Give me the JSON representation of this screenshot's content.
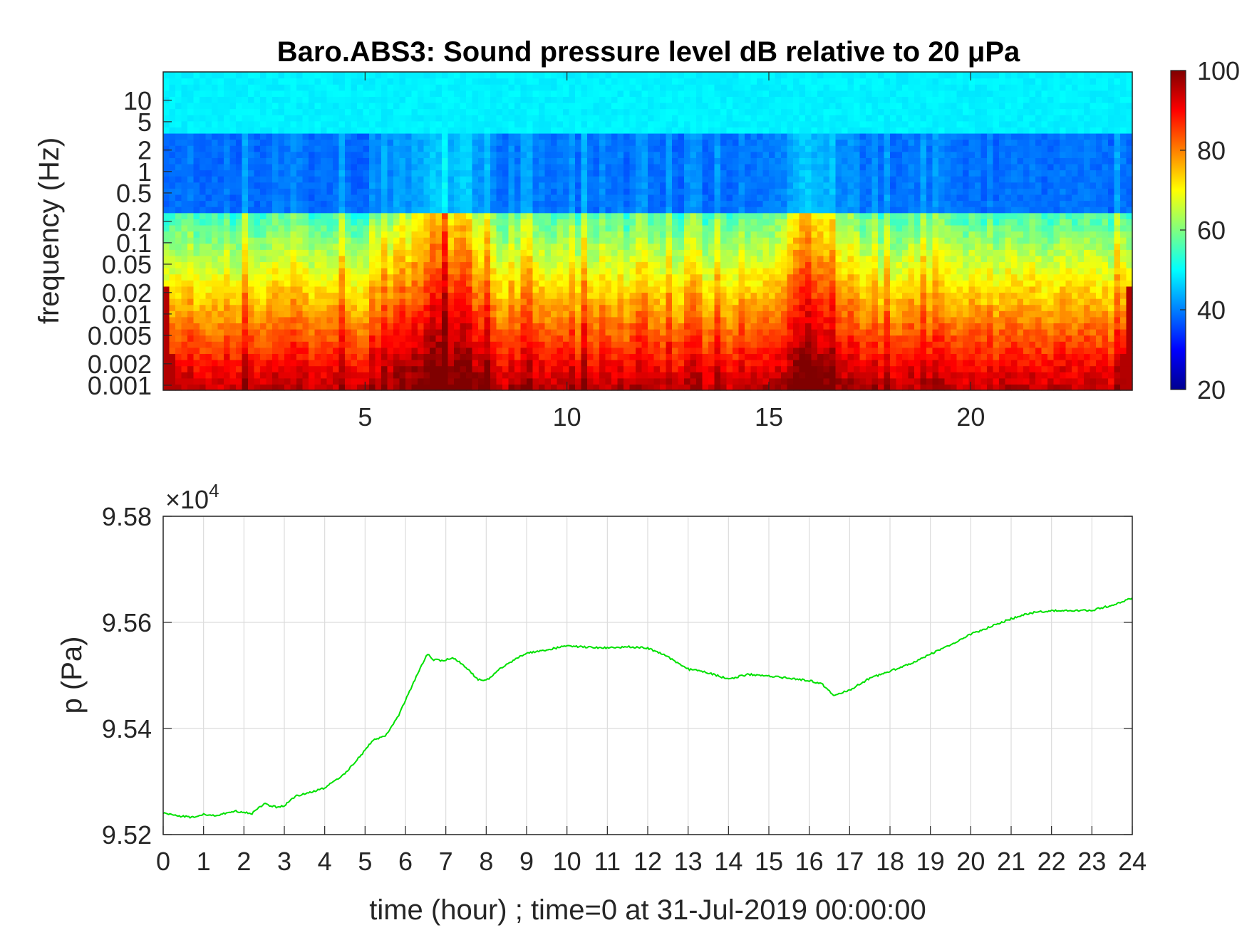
{
  "chart_data": [
    {
      "type": "heatmap",
      "title": "Baro.ABS3: Sound pressure level dB relative to 20 μPa",
      "xlabel": "",
      "ylabel": "frequency (Hz)",
      "x_ticks": [
        "5",
        "10",
        "15",
        "20"
      ],
      "x_tick_values": [
        5,
        10,
        15,
        20
      ],
      "xlim": [
        0,
        24
      ],
      "y_scale": "log",
      "y_ticks": [
        "10",
        "5",
        "2",
        "1",
        "0.5",
        "0.2",
        "0.1",
        "0.05",
        "0.02",
        "0.01",
        "0.005",
        "0.002",
        "0.001"
      ],
      "y_tick_values": [
        10,
        5,
        2,
        1,
        0.5,
        0.2,
        0.1,
        0.05,
        0.02,
        0.01,
        0.005,
        0.002,
        0.001
      ],
      "ylim": [
        0.00085,
        25
      ],
      "colorbar": {
        "ticks": [
          "100",
          "80",
          "60",
          "40",
          "20"
        ],
        "tick_values": [
          100,
          80,
          60,
          40,
          20
        ],
        "clim": [
          20,
          100
        ],
        "colormap": "jet"
      },
      "activity_windows_hours": [
        {
          "start": 5.4,
          "end": 8.2,
          "peak_db": 90
        },
        {
          "start": 15.2,
          "end": 16.8,
          "peak_db": 88
        }
      ],
      "low_frequency_level_db": 88,
      "high_frequency_level_db": 48,
      "band_0p5_2hz_level_db": 34
    },
    {
      "type": "line",
      "title": "",
      "xlabel": "time (hour) ; time=0 at 31-Jul-2019 00:00:00",
      "ylabel": "p (Pa)",
      "y_exponent_label": "×10",
      "y_exponent": "4",
      "x_ticks": [
        "0",
        "1",
        "2",
        "3",
        "4",
        "5",
        "6",
        "7",
        "8",
        "9",
        "10",
        "11",
        "12",
        "13",
        "14",
        "15",
        "16",
        "17",
        "18",
        "19",
        "20",
        "21",
        "22",
        "23",
        "24"
      ],
      "y_ticks": [
        "9.58",
        "9.56",
        "9.54",
        "9.52"
      ],
      "y_tick_values": [
        9.58,
        9.56,
        9.54,
        9.52
      ],
      "xlim": [
        0,
        24
      ],
      "ylim": [
        9.52,
        9.58
      ],
      "grid": true,
      "series": [
        {
          "color": "#00e000",
          "x": [
            0,
            0.3,
            0.8,
            1.0,
            1.3,
            1.8,
            2.2,
            2.5,
            2.8,
            3.0,
            3.3,
            3.6,
            4.0,
            4.5,
            4.9,
            5.2,
            5.5,
            5.8,
            6.1,
            6.4,
            6.55,
            6.7,
            6.9,
            7.2,
            7.5,
            7.8,
            8.0,
            8.3,
            8.7,
            9.0,
            9.5,
            10.0,
            10.5,
            11.0,
            11.5,
            12.0,
            12.5,
            13.0,
            13.5,
            14.0,
            14.5,
            15.0,
            15.5,
            16.0,
            16.3,
            16.6,
            17.0,
            17.5,
            18.0,
            18.5,
            19.0,
            19.5,
            20.0,
            20.5,
            21.0,
            21.5,
            22.0,
            22.5,
            23.0,
            23.5,
            24.0
          ],
          "y": [
            9.5241,
            9.5236,
            9.5232,
            9.5238,
            9.5236,
            9.5244,
            9.524,
            9.5258,
            9.5252,
            9.5255,
            9.5273,
            9.5278,
            9.5288,
            9.5315,
            9.535,
            9.5378,
            9.5385,
            9.542,
            9.547,
            9.552,
            9.554,
            9.553,
            9.5528,
            9.5533,
            9.5515,
            9.5492,
            9.549,
            9.551,
            9.553,
            9.5542,
            9.5548,
            9.5556,
            9.5553,
            9.5552,
            9.5554,
            9.5552,
            9.5535,
            9.5512,
            9.5505,
            9.5493,
            9.5502,
            9.5499,
            9.5495,
            9.549,
            9.5485,
            9.5462,
            9.5472,
            9.5495,
            9.5508,
            9.5522,
            9.554,
            9.5558,
            9.5578,
            9.5592,
            9.5607,
            9.5618,
            9.5622,
            9.5622,
            9.5623,
            9.5632,
            9.5646
          ]
        }
      ]
    }
  ]
}
